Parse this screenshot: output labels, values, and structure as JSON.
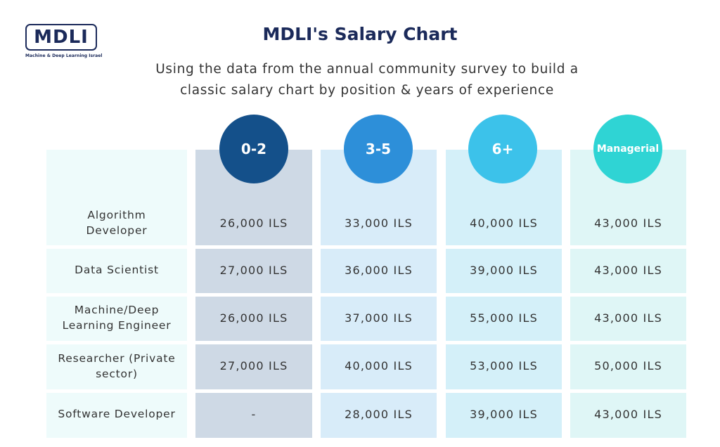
{
  "logo": {
    "text": "MDLI",
    "subtitle": "Machine & Deep Learning Israel"
  },
  "header": {
    "title": "MDLI's Salary Chart",
    "subtitle_line1": "Using the data from the annual community survey to build a",
    "subtitle_line2": "classic salary chart by position & years of experience"
  },
  "colors": {
    "title": "#1b2a5a",
    "circle_0": "#14508a",
    "circle_1": "#2d8fd9",
    "circle_2": "#3cc2ea",
    "circle_3": "#2fd4d4"
  },
  "chart_data": {
    "type": "table",
    "title": "MDLI's Salary Chart",
    "columns": [
      "0-2",
      "3-5",
      "6+",
      "Managerial"
    ],
    "rows": [
      {
        "label": "Algorithm Developer",
        "label_lines": [
          "Algorithm",
          "Developer"
        ],
        "values": [
          "26,000 ILS",
          "33,000 ILS",
          "40,000 ILS",
          "43,000 ILS"
        ]
      },
      {
        "label": "Data Scientist",
        "label_lines": [
          "Data Scientist"
        ],
        "values": [
          "27,000 ILS",
          "36,000 ILS",
          "39,000 ILS",
          "43,000 ILS"
        ]
      },
      {
        "label": "Machine/Deep Learning Engineer",
        "label_lines": [
          "Machine/Deep",
          "Learning Engineer"
        ],
        "values": [
          "26,000 ILS",
          "37,000 ILS",
          "55,000 ILS",
          "43,000 ILS"
        ]
      },
      {
        "label": "Researcher (Private sector)",
        "label_lines": [
          "Researcher (Private",
          "sector)"
        ],
        "values": [
          "27,000 ILS",
          "40,000 ILS",
          "53,000 ILS",
          "50,000 ILS"
        ]
      },
      {
        "label": "Software Developer",
        "label_lines": [
          "Software Developer"
        ],
        "values": [
          "-",
          "28,000 ILS",
          "39,000 ILS",
          "43,000 ILS"
        ]
      }
    ]
  }
}
